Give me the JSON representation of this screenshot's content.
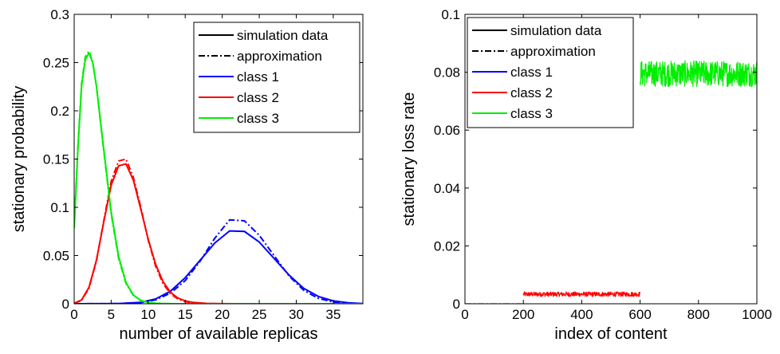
{
  "chart_data": [
    {
      "type": "line",
      "xlabel": "number of available replicas",
      "ylabel": "stationary probability",
      "xlim": [
        0,
        39
      ],
      "ylim": [
        0,
        0.3
      ],
      "xticks": [
        "0",
        "5",
        "10",
        "15",
        "20",
        "25",
        "30",
        "35"
      ],
      "yticks": [
        "0",
        "0.05",
        "0.1",
        "0.15",
        "0.2",
        "0.25",
        "0.3"
      ],
      "grid": false,
      "legend_position": "top-right",
      "legend": [
        {
          "label": "simulation data",
          "color": "#000000",
          "style": "solid"
        },
        {
          "label": "approximation",
          "color": "#000000",
          "style": "dashdot"
        },
        {
          "label": "class 1",
          "color": "#0000ff",
          "style": "solid"
        },
        {
          "label": "class 2",
          "color": "#ff0000",
          "style": "solid"
        },
        {
          "label": "class 3",
          "color": "#00ee00",
          "style": "solid"
        }
      ],
      "series": [
        {
          "color": "#0000ff",
          "style": "solid",
          "x": [
            0,
            6,
            9,
            11,
            13,
            15,
            17,
            19,
            21,
            23,
            25,
            27,
            29,
            31,
            33,
            35,
            37,
            39
          ],
          "y": [
            0,
            0.0002,
            0.0015,
            0.005,
            0.013,
            0.027,
            0.045,
            0.063,
            0.0755,
            0.075,
            0.064,
            0.047,
            0.03,
            0.016,
            0.0075,
            0.003,
            0.001,
            0.0002
          ]
        },
        {
          "color": "#0000ff",
          "style": "dashdot",
          "x": [
            0,
            6,
            9,
            11,
            13,
            15,
            17,
            19,
            21,
            23,
            25,
            27,
            29,
            31,
            33,
            35,
            37,
            39
          ],
          "y": [
            0,
            0.0002,
            0.0012,
            0.004,
            0.011,
            0.024,
            0.044,
            0.068,
            0.087,
            0.086,
            0.071,
            0.05,
            0.029,
            0.014,
            0.0055,
            0.0018,
            0.0005,
            0.0001
          ]
        },
        {
          "color": "#ff0000",
          "style": "solid",
          "x": [
            0,
            1,
            2,
            3,
            4,
            5,
            6,
            7,
            8,
            9,
            10,
            11,
            12,
            13,
            14,
            15,
            16,
            18,
            20,
            22
          ],
          "y": [
            0.0005,
            0.004,
            0.017,
            0.045,
            0.085,
            0.123,
            0.143,
            0.145,
            0.128,
            0.098,
            0.067,
            0.041,
            0.023,
            0.012,
            0.006,
            0.003,
            0.0015,
            0.0003,
            0.0001,
            0
          ]
        },
        {
          "color": "#ff0000",
          "style": "dashdot",
          "x": [
            0,
            1,
            2,
            3,
            4,
            5,
            6,
            7,
            8,
            9,
            10,
            11,
            12,
            13,
            14,
            15,
            16,
            18,
            20,
            22
          ],
          "y": [
            0.0004,
            0.0035,
            0.016,
            0.044,
            0.086,
            0.127,
            0.148,
            0.15,
            0.131,
            0.1,
            0.066,
            0.039,
            0.021,
            0.0105,
            0.005,
            0.0022,
            0.001,
            0.0002,
            0,
            0
          ]
        },
        {
          "color": "#00ee00",
          "style": "solid",
          "x": [
            0,
            0.5,
            1,
            1.5,
            2,
            2.5,
            3,
            4,
            5,
            6,
            7,
            8,
            9,
            10,
            11,
            12,
            14,
            16,
            20,
            25,
            30,
            35,
            39
          ],
          "y": [
            0.078,
            0.16,
            0.226,
            0.253,
            0.26,
            0.25,
            0.226,
            0.16,
            0.095,
            0.049,
            0.022,
            0.009,
            0.0035,
            0.0013,
            0.0005,
            0.0002,
            0,
            0,
            0,
            0,
            0,
            0,
            0
          ]
        },
        {
          "color": "#00ee00",
          "style": "dashdot",
          "x": [
            0,
            0.5,
            1,
            1.5,
            2,
            2.5,
            3,
            4,
            5,
            6,
            7,
            8,
            9,
            10,
            11,
            12,
            14,
            16,
            20,
            25,
            30,
            35,
            39
          ],
          "y": [
            0.08,
            0.162,
            0.228,
            0.256,
            0.262,
            0.251,
            0.226,
            0.158,
            0.093,
            0.047,
            0.021,
            0.0085,
            0.003,
            0.001,
            0.0004,
            0.0001,
            0,
            0,
            0,
            0,
            0,
            0,
            0
          ]
        }
      ]
    },
    {
      "type": "line",
      "xlabel": "index of content",
      "ylabel": "stationary loss rate",
      "xlim": [
        0,
        1000
      ],
      "ylim": [
        0,
        0.1
      ],
      "xticks": [
        "0",
        "200",
        "400",
        "600",
        "800",
        "1000"
      ],
      "yticks": [
        "0",
        "0.02",
        "0.04",
        "0.06",
        "0.08",
        "0.1"
      ],
      "grid": false,
      "legend_position": "top-left",
      "legend": [
        {
          "label": "simulation data",
          "color": "#000000",
          "style": "solid"
        },
        {
          "label": "approximation",
          "color": "#000000",
          "style": "dashdot"
        },
        {
          "label": "class 1",
          "color": "#0000ff",
          "style": "solid"
        },
        {
          "label": "class 2",
          "color": "#ff0000",
          "style": "solid"
        },
        {
          "label": "class 3",
          "color": "#00ee00",
          "style": "solid"
        }
      ],
      "series": [
        {
          "color": "#0000ff",
          "style": "dashdot",
          "x_range": [
            0,
            200
          ],
          "mean": 0,
          "noise": 0
        },
        {
          "color": "#ff0000",
          "style": "solid",
          "x_range": [
            200,
            600
          ],
          "mean": 0.0033,
          "noise": 0.0008
        },
        {
          "color": "#00ee00",
          "style": "solid",
          "x_range": [
            600,
            1000
          ],
          "mean": 0.0795,
          "noise": 0.0045
        }
      ]
    }
  ]
}
